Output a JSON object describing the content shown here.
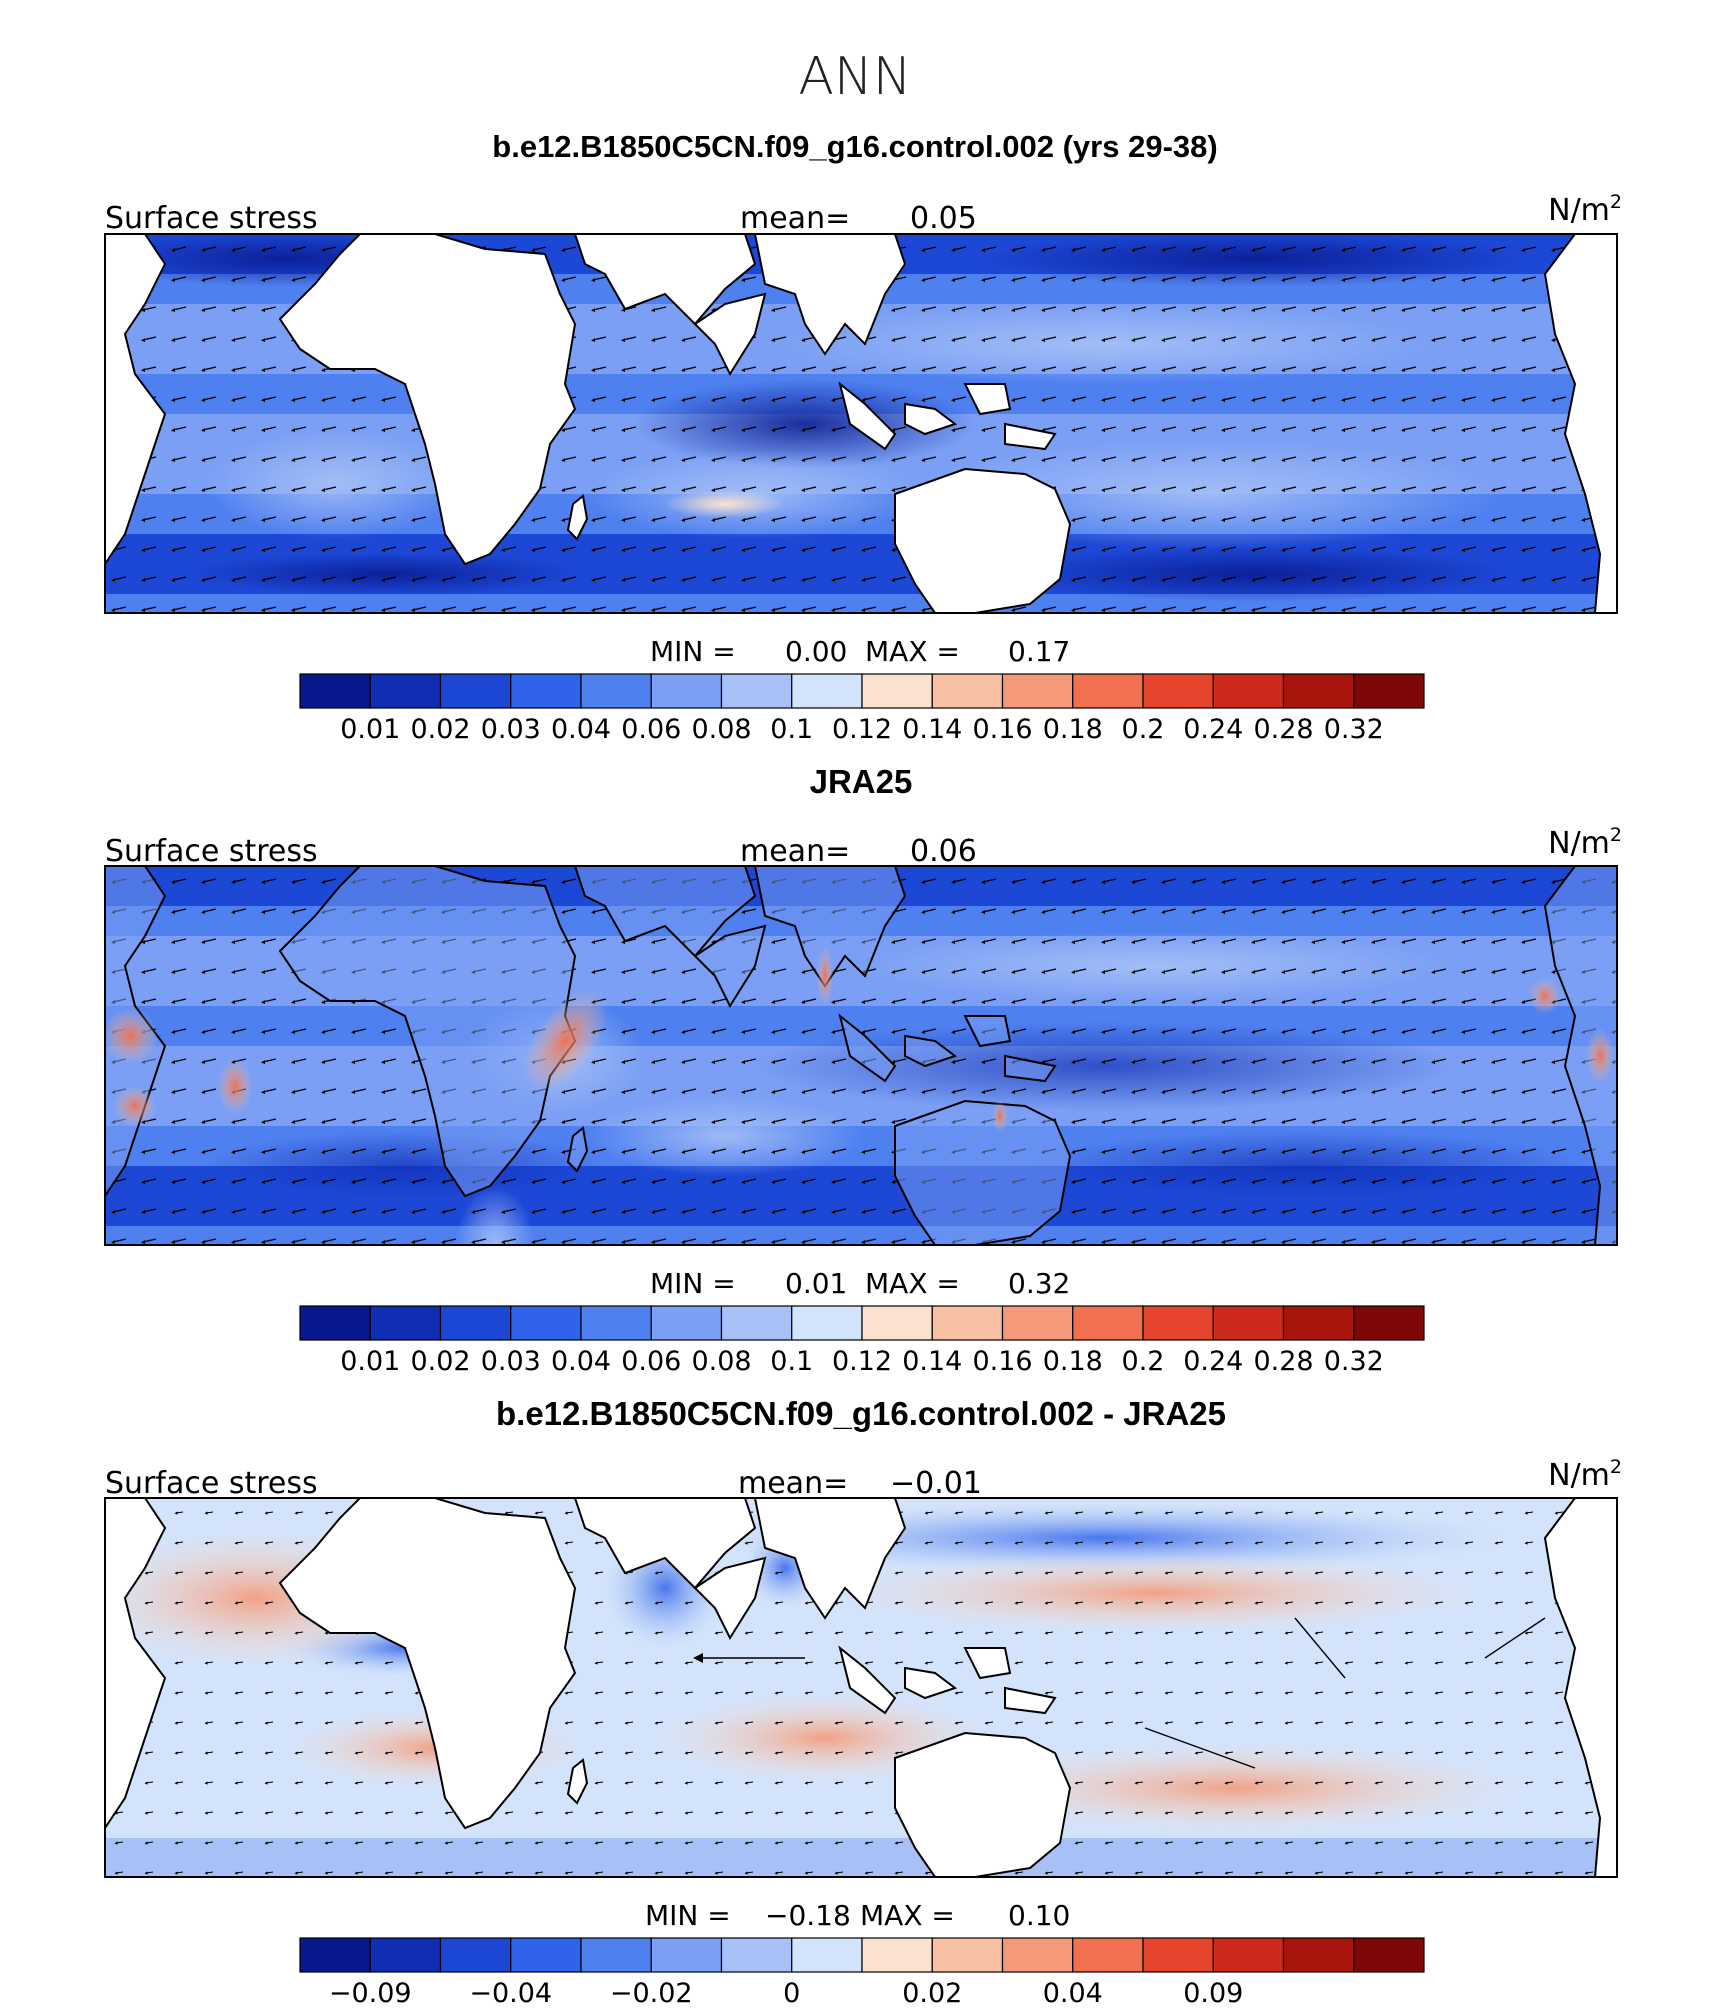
{
  "figure": {
    "title": "ANN",
    "units_base": "N/m",
    "units_exp": "2",
    "field_label": "Surface stress",
    "mean_label": "mean=",
    "min_label": "MIN =",
    "max_label": "MAX ="
  },
  "panels": [
    {
      "title": "b.e12.B1850C5CN.f09_g16.control.002 (yrs 29-38)",
      "mean": "0.05",
      "min": "0.00",
      "max": "0.17",
      "colorbar_labels": [
        "0.01",
        "0.02",
        "0.03",
        "0.04",
        "0.06",
        "0.08",
        "0.1",
        "0.12",
        "0.14",
        "0.16",
        "0.18",
        "0.2",
        "0.24",
        "0.28",
        "0.32"
      ]
    },
    {
      "title": "JRA25",
      "mean": "0.06",
      "min": "0.01",
      "max": "0.32",
      "colorbar_labels": [
        "0.01",
        "0.02",
        "0.03",
        "0.04",
        "0.06",
        "0.08",
        "0.1",
        "0.12",
        "0.14",
        "0.16",
        "0.18",
        "0.2",
        "0.24",
        "0.28",
        "0.32"
      ]
    },
    {
      "title": "b.e12.B1850C5CN.f09_g16.control.002 - JRA25",
      "mean": "−0.01",
      "min": "−0.18",
      "max": "0.10",
      "colorbar_labels": [
        "−0.09",
        "−0.04",
        "−0.02",
        "0",
        "0.02",
        "0.04",
        "0.09"
      ]
    }
  ],
  "palette": [
    "#08198f",
    "#0f2eb4",
    "#1d48d6",
    "#2f63eb",
    "#4f80f0",
    "#7a9ff4",
    "#a7c1f7",
    "#d3e3fb",
    "#fbe2d0",
    "#f8c0a3",
    "#f49a7a",
    "#f0704f",
    "#e6452d",
    "#cc2a1c",
    "#a8160e",
    "#7e0707"
  ],
  "chart_data": [
    {
      "type": "heatmap",
      "title": "b.e12.B1850C5CN.f09_g16.control.002 (yrs 29-38)",
      "variable": "Surface stress",
      "units": "N/m2",
      "season": "ANN",
      "mean": 0.05,
      "min": 0.0,
      "max": 0.17,
      "contour_levels": [
        0.01,
        0.02,
        0.03,
        0.04,
        0.06,
        0.08,
        0.1,
        0.12,
        0.14,
        0.16,
        0.18,
        0.2,
        0.24,
        0.28,
        0.32
      ],
      "overlay": "wind stress vectors"
    },
    {
      "type": "heatmap",
      "title": "JRA25",
      "variable": "Surface stress",
      "units": "N/m2",
      "season": "ANN",
      "mean": 0.06,
      "min": 0.01,
      "max": 0.32,
      "contour_levels": [
        0.01,
        0.02,
        0.03,
        0.04,
        0.06,
        0.08,
        0.1,
        0.12,
        0.14,
        0.16,
        0.18,
        0.2,
        0.24,
        0.28,
        0.32
      ],
      "overlay": "wind stress vectors"
    },
    {
      "type": "heatmap",
      "title": "b.e12.B1850C5CN.f09_g16.control.002 - JRA25",
      "variable": "Surface stress",
      "units": "N/m2",
      "season": "ANN",
      "mean": -0.01,
      "min": -0.18,
      "max": 0.1,
      "contour_levels_labeled": [
        -0.09,
        -0.04,
        -0.02,
        0,
        0.02,
        0.04,
        0.09
      ],
      "overlay": "wind stress difference vectors"
    }
  ]
}
